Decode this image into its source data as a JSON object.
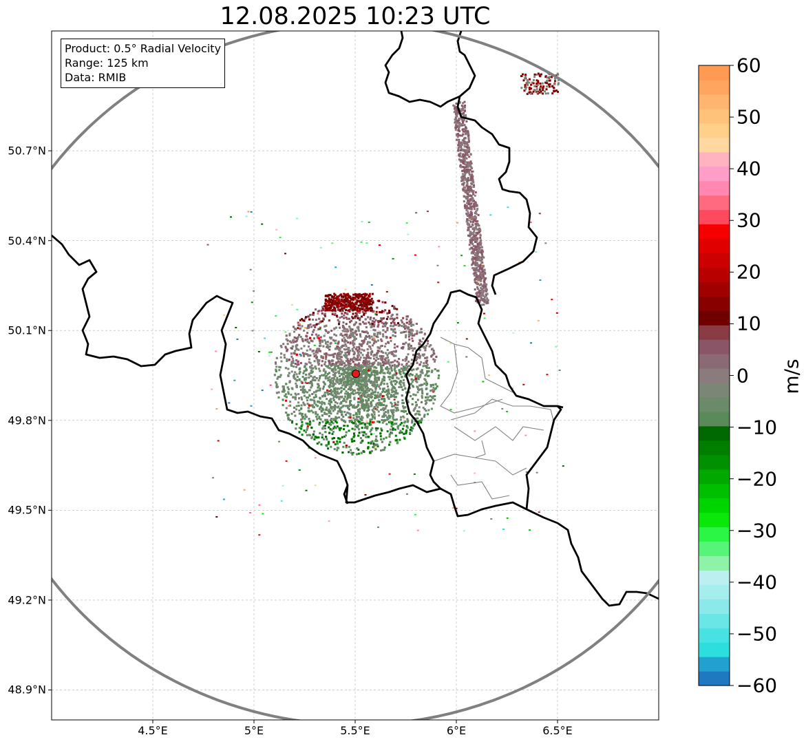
{
  "title": "12.08.2025 10:23 UTC",
  "info_box": {
    "product": "Product: 0.5° Radial Velocity",
    "range": "Range: 125 km",
    "data": "Data: RMIB"
  },
  "map": {
    "lon_range": [
      4.0,
      7.0
    ],
    "lat_range": [
      48.8,
      51.1
    ],
    "lon_ticks": [
      "4.5°E",
      "5°E",
      "5.5°E",
      "6°E",
      "6.5°E"
    ],
    "lat_ticks": [
      "50.7°N",
      "50.4°N",
      "50.1°N",
      "49.8°N",
      "49.5°N",
      "49.2°N",
      "48.9°N"
    ],
    "radar_site": {
      "lon": 5.505,
      "lat": 49.915,
      "marker_color": "#e41a1c"
    },
    "range_ring_km": 125,
    "range_ring_color": "#808080",
    "grid": true
  },
  "colorbar": {
    "label": "m/s",
    "min": -60,
    "max": 60,
    "tick_labels": [
      "60",
      "50",
      "40",
      "30",
      "20",
      "10",
      "0",
      "−10",
      "−20",
      "−30",
      "−40",
      "−50",
      "−60"
    ],
    "palette_bottom_to_top": [
      "#1f78c0",
      "#22a0cf",
      "#2cdede",
      "#49e2e2",
      "#6be6e6",
      "#8ce9e9",
      "#a6eded",
      "#bbeff0",
      "#8ef2a8",
      "#56f57a",
      "#2bf545",
      "#0ae80a",
      "#00d400",
      "#00be00",
      "#00a800",
      "#009000",
      "#007e00",
      "#006800",
      "#5a8a5a",
      "#6a8a6a",
      "#7c8677",
      "#8a7c7c",
      "#8a6a75",
      "#8a5566",
      "#8a3c45",
      "#700000",
      "#880000",
      "#a00000",
      "#b80000",
      "#cc0000",
      "#e00000",
      "#f40000",
      "#ff4a5e",
      "#ff6a80",
      "#ff87b0",
      "#ff9ec8",
      "#ffb3c0",
      "#ffd7a0",
      "#ffd08a",
      "#ffc27a",
      "#ffb470",
      "#ffa560",
      "#ff9a52"
    ]
  }
}
